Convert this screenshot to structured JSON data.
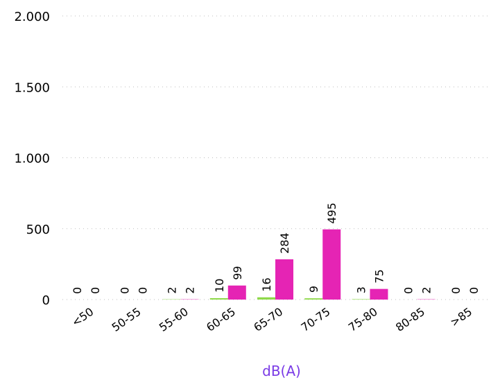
{
  "chart_data": {
    "type": "bar",
    "categories": [
      "<50",
      "50-55",
      "55-60",
      "60-65",
      "65-70",
      "70-75",
      "75-80",
      "80-85",
      ">85"
    ],
    "series": [
      {
        "values": [
          0,
          0,
          2,
          10,
          16,
          9,
          3,
          0,
          0
        ],
        "color": "#8fd94a"
      },
      {
        "values": [
          0,
          0,
          2,
          99,
          284,
          495,
          75,
          2,
          0
        ],
        "color": "#e524b4"
      }
    ],
    "title": "",
    "xlabel": "dB(A)",
    "xlabel_color": "#7a3be6",
    "ylabel": "",
    "ylim": [
      0,
      2000
    ],
    "yticks": [
      {
        "value": 0,
        "label": "0"
      },
      {
        "value": 500,
        "label": "500"
      },
      {
        "value": 1000,
        "label": "1.000"
      },
      {
        "value": 1500,
        "label": "1.500"
      },
      {
        "value": 2000,
        "label": "2.000"
      }
    ],
    "grid": true,
    "legend": "none"
  }
}
